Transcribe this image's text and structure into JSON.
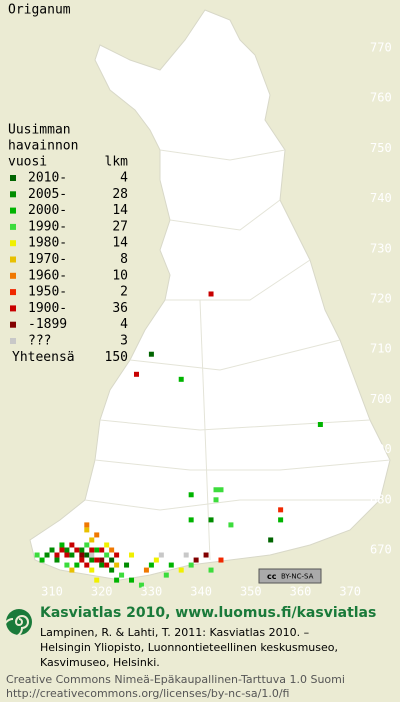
{
  "title": "Origanum",
  "axes": {
    "y_labels": [
      770,
      760,
      750,
      740,
      730,
      720,
      710,
      700,
      690,
      680,
      670
    ],
    "x_labels": [
      310,
      320,
      330,
      340,
      350,
      360,
      370
    ]
  },
  "legend": {
    "header": [
      "Uusimman",
      "havainnon",
      "vuosi"
    ],
    "count_header": "lkm",
    "rows": [
      {
        "label": "2010-",
        "count": 4,
        "color": "#006400",
        "squares": [
          [
            330,
            709
          ],
          [
            354,
            672
          ],
          [
            317,
            669
          ],
          [
            322,
            668
          ]
        ]
      },
      {
        "label": "2005-",
        "count": 28,
        "color": "#008c00",
        "squares": [
          [
            342,
            676
          ],
          [
            309,
            669
          ],
          [
            310,
            670
          ],
          [
            311,
            668
          ],
          [
            313,
            670
          ],
          [
            314,
            669
          ],
          [
            316,
            670
          ],
          [
            318,
            668
          ],
          [
            320,
            667
          ],
          [
            322,
            666
          ],
          [
            325,
            667
          ]
        ]
      },
      {
        "label": "2000-",
        "count": 14,
        "color": "#00b400",
        "squares": [
          [
            336,
            704
          ],
          [
            364,
            695
          ],
          [
            338,
            681
          ],
          [
            338,
            676
          ],
          [
            356,
            676
          ],
          [
            308,
            668
          ],
          [
            312,
            671
          ],
          [
            315,
            667
          ],
          [
            319,
            670
          ],
          [
            323,
            664
          ],
          [
            326,
            664
          ],
          [
            330,
            667
          ],
          [
            334,
            667
          ]
        ]
      },
      {
        "label": "1990-",
        "count": 27,
        "color": "#3cdc3c",
        "squares": [
          [
            343,
            680
          ],
          [
            343,
            682
          ],
          [
            344,
            682
          ],
          [
            346,
            675
          ],
          [
            307,
            669
          ],
          [
            313,
            667
          ],
          [
            317,
            671
          ],
          [
            321,
            669
          ],
          [
            324,
            665
          ],
          [
            328,
            663
          ],
          [
            333,
            665
          ],
          [
            338,
            667
          ],
          [
            342,
            666
          ]
        ]
      },
      {
        "label": "1980-",
        "count": 14,
        "color": "#f0f000",
        "squares": [
          [
            318,
            666
          ],
          [
            321,
            671
          ],
          [
            326,
            669
          ],
          [
            331,
            668
          ],
          [
            336,
            666
          ],
          [
            319,
            664
          ]
        ]
      },
      {
        "label": "1970-",
        "count": 8,
        "color": "#e8c000",
        "squares": [
          [
            317,
            674
          ],
          [
            318,
            672
          ],
          [
            323,
            667
          ],
          [
            314,
            666
          ]
        ]
      },
      {
        "label": "1960-",
        "count": 10,
        "color": "#f07800",
        "squares": [
          [
            317,
            675
          ],
          [
            319,
            673
          ],
          [
            322,
            670
          ],
          [
            329,
            666
          ]
        ]
      },
      {
        "label": "1950-",
        "count": 2,
        "color": "#f02800",
        "squares": [
          [
            356,
            678
          ],
          [
            344,
            668
          ]
        ]
      },
      {
        "label": "1900-",
        "count": 36,
        "color": "#c80000",
        "squares": [
          [
            342,
            721
          ],
          [
            327,
            705
          ],
          [
            311,
            669
          ],
          [
            312,
            670
          ],
          [
            313,
            669
          ],
          [
            315,
            670
          ],
          [
            316,
            668
          ],
          [
            318,
            670
          ],
          [
            319,
            668
          ],
          [
            320,
            670
          ],
          [
            321,
            667
          ],
          [
            323,
            669
          ],
          [
            314,
            671
          ],
          [
            317,
            667
          ]
        ]
      },
      {
        "label": "-1899",
        "count": 4,
        "color": "#820000",
        "squares": [
          [
            316,
            669
          ],
          [
            320,
            668
          ],
          [
            339,
            668
          ],
          [
            341,
            669
          ]
        ]
      },
      {
        "label": "???",
        "count": 3,
        "color": "#c8c8c8",
        "squares": [
          [
            318,
            669
          ],
          [
            332,
            669
          ],
          [
            337,
            669
          ]
        ]
      }
    ],
    "total": {
      "label": "Yhteensä",
      "count": 150
    }
  },
  "license_badge": {
    "cc": "cc",
    "terms": "BY-NC-SA"
  },
  "footer": {
    "title": "Kasviatlas 2010, www.luomus.fi/kasviatlas",
    "citation": [
      "Lampinen, R. & Lahti, T. 2011: Kasviatlas 2010. –",
      "Helsingin Yliopisto, Luonnontieteellinen keskusmuseo,",
      "Kasvimuseo, Helsinki."
    ],
    "license": [
      "Creative Commons Nimeä-Epäkaupallinen-Tarttuva 1.0 Suomi",
      "http://creativecommons.org/licenses/by-nc-sa/1.0/fi"
    ]
  }
}
